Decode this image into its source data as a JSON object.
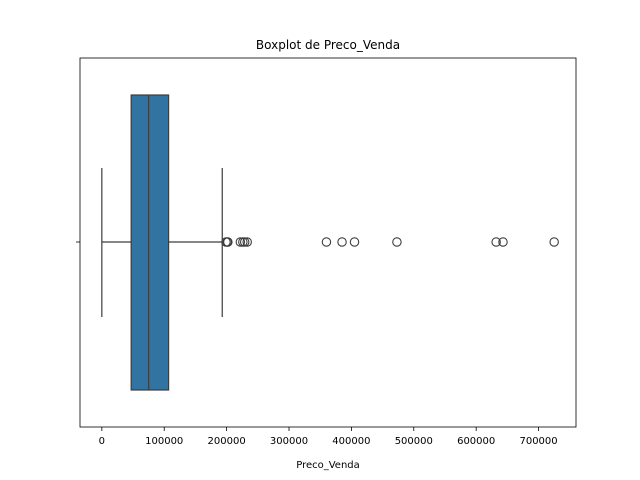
{
  "chart_data": {
    "type": "box",
    "title": "Boxplot de Preco_Venda",
    "xlabel": "Preco_Venda",
    "ylabel": "",
    "orientation": "horizontal",
    "xlim": [
      -35000,
      760000
    ],
    "xticks": [
      0,
      100000,
      200000,
      300000,
      400000,
      500000,
      600000,
      700000
    ],
    "xtick_labels": [
      "0",
      "100000",
      "200000",
      "300000",
      "400000",
      "500000",
      "600000",
      "700000"
    ],
    "grid": false,
    "box": {
      "whisker_low": 0,
      "q1": 47000,
      "median": 75000,
      "q3": 107000,
      "whisker_high": 193000,
      "color": "#3274a1"
    },
    "outliers": [
      199000,
      201000,
      202000,
      222000,
      226000,
      229000,
      233000,
      360000,
      385000,
      405000,
      473000,
      632000,
      643000,
      725000
    ]
  }
}
